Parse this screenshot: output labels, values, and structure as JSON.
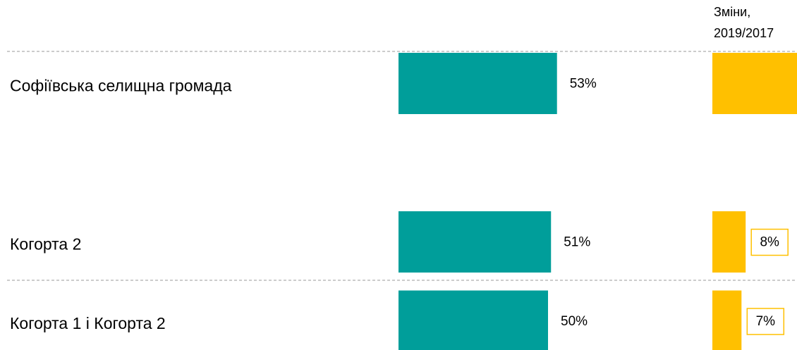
{
  "chart_data": {
    "type": "bar",
    "change_header": [
      "Зміни,",
      "2019/2017"
    ],
    "categories": [
      "Софіївська селищна громада",
      null,
      "Когорта 2",
      "Когорта 1 і Когорта 2"
    ],
    "values": [
      53,
      null,
      51,
      50
    ],
    "value_labels": [
      "53%",
      null,
      "51%",
      "50%"
    ],
    "color": "#009e9a",
    "change_values": [
      21,
      null,
      8,
      7
    ],
    "change_value_labels": [
      null,
      null,
      "8%",
      "7%"
    ],
    "change_color": "#ffc000"
  }
}
